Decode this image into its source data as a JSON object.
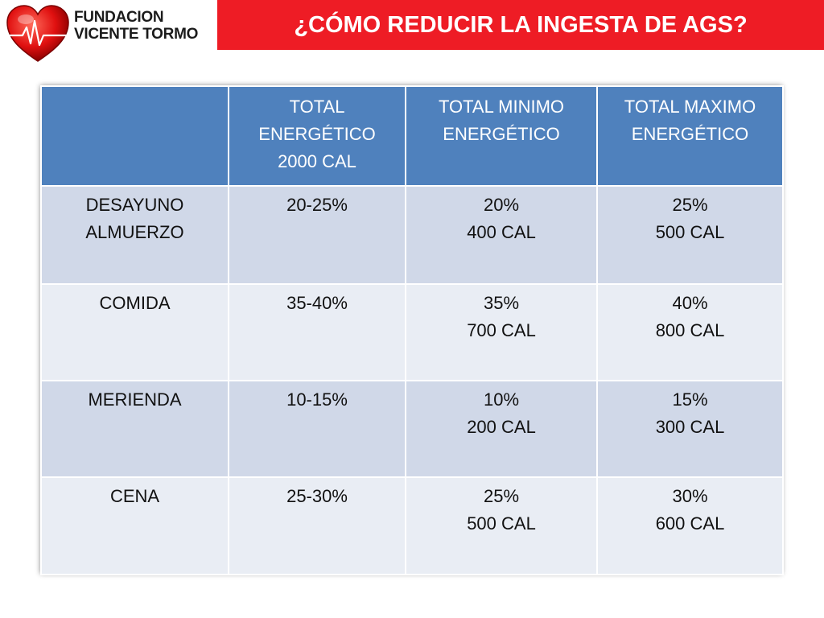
{
  "logo": {
    "line1": "FUNDACION",
    "line2": "VICENTE TORMO"
  },
  "title": "¿CÓMO REDUCIR LA INGESTA DE AGS?",
  "colors": {
    "title_bg": "#ee1c25",
    "header_bg": "#4f81bd",
    "row_dark": "#d0d8e8",
    "row_light": "#e9edf4"
  },
  "table": {
    "headers": [
      [
        ""
      ],
      [
        "TOTAL",
        "ENERGÉTICO",
        "2000 CAL"
      ],
      [
        "TOTAL MINIMO",
        "ENERGÉTICO"
      ],
      [
        "TOTAL MAXIMO",
        "ENERGÉTICO"
      ]
    ],
    "rows": [
      {
        "meal": [
          "DESAYUNO",
          "ALMUERZO"
        ],
        "range": "20-25%",
        "min": [
          "20%",
          "400 CAL"
        ],
        "max": [
          "25%",
          "500 CAL"
        ]
      },
      {
        "meal": [
          "COMIDA"
        ],
        "range": "35-40%",
        "min": [
          "35%",
          "700 CAL"
        ],
        "max": [
          "40%",
          "800 CAL"
        ]
      },
      {
        "meal": [
          "MERIENDA"
        ],
        "range": "10-15%",
        "min": [
          "10%",
          "200 CAL"
        ],
        "max": [
          "15%",
          "300 CAL"
        ]
      },
      {
        "meal": [
          "CENA"
        ],
        "range": "25-30%",
        "min": [
          "25%",
          "500 CAL"
        ],
        "max": [
          "30%",
          "600 CAL"
        ]
      }
    ]
  }
}
